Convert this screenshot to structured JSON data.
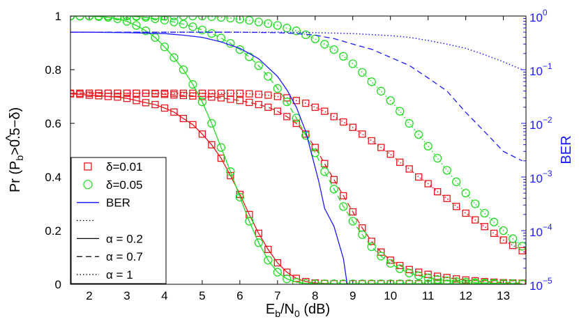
{
  "chart_data": {
    "type": "line",
    "title": "",
    "xlabel": {
      "base": "E",
      "sub1": "b",
      "mid": "/N",
      "sub2": "0",
      "tail": " (dB)"
    },
    "ylabel": {
      "pre": "Pr (",
      "hat": "^",
      "base": "P",
      "sub": "b",
      "post": ">0.5−δ)"
    },
    "y2label": "BER",
    "xlim": [
      1.5,
      13.6
    ],
    "ylim": [
      0,
      1
    ],
    "xticks": [
      2,
      3,
      4,
      5,
      6,
      7,
      8,
      9,
      10,
      11,
      12,
      13
    ],
    "yticks": [
      0,
      0.2,
      0.4,
      0.6,
      0.8,
      1
    ],
    "ytick_labels": [
      "0",
      "0.2",
      "0.4",
      "0.6",
      "0.8",
      "1"
    ],
    "y2lim_log10": [
      -5,
      0
    ],
    "y2ticks": [
      {
        "exp": 0,
        "base": "10",
        "sup": "0"
      },
      {
        "exp": -1,
        "base": "10",
        "sup": "−1"
      },
      {
        "exp": -2,
        "base": "10",
        "sup": "−2"
      },
      {
        "exp": -3,
        "base": "10",
        "sup": "−3"
      },
      {
        "exp": -4,
        "base": "10",
        "sup": "−4"
      },
      {
        "exp": -5,
        "base": "10",
        "sup": "−5"
      }
    ],
    "colors": {
      "red": "#e8141a",
      "green": "#22dd22",
      "blue": "#1a1aff",
      "black": "#000000"
    },
    "marker_x": [
      1.5,
      1.75,
      2,
      2.25,
      2.5,
      2.75,
      3,
      3.25,
      3.5,
      3.75,
      4,
      4.25,
      4.5,
      4.75,
      5,
      5.25,
      5.5,
      5.75,
      6,
      6.25,
      6.5,
      6.75,
      7,
      7.25,
      7.5,
      7.75,
      8,
      8.25,
      8.5,
      8.75,
      9,
      9.25,
      9.5,
      9.75,
      10,
      10.25,
      10.5,
      10.75,
      11,
      11.25,
      11.5,
      11.75,
      12,
      12.25,
      12.5,
      12.75,
      13,
      13.25,
      13.5
    ],
    "series": [
      {
        "name": "delta=0.01, alpha=0.2",
        "color": "red",
        "marker": "square",
        "line": "solid",
        "values": [
          0.71,
          0.708,
          0.705,
          0.703,
          0.7,
          0.698,
          0.693,
          0.685,
          0.677,
          0.67,
          0.657,
          0.642,
          0.618,
          0.595,
          0.56,
          0.52,
          0.47,
          0.405,
          0.335,
          0.26,
          0.19,
          0.13,
          0.08,
          0.045,
          0.022,
          0.01,
          0.005,
          0.003,
          0.002,
          0.002,
          0.002,
          0.002,
          0.002,
          0.002,
          0.002,
          0.002,
          0.002,
          0.002,
          0.002,
          0.002,
          0.002,
          0.002,
          0.002,
          0.002,
          0.002,
          0.002,
          0.002,
          0.002,
          0.002
        ]
      },
      {
        "name": "delta=0.01, alpha=0.7",
        "color": "red",
        "marker": "square",
        "line": "dashed",
        "values": [
          0.712,
          0.712,
          0.712,
          0.712,
          0.712,
          0.712,
          0.712,
          0.712,
          0.712,
          0.71,
          0.708,
          0.706,
          0.704,
          0.702,
          0.7,
          0.698,
          0.695,
          0.69,
          0.685,
          0.678,
          0.67,
          0.66,
          0.645,
          0.625,
          0.6,
          0.56,
          0.51,
          0.45,
          0.39,
          0.33,
          0.27,
          0.21,
          0.16,
          0.12,
          0.09,
          0.07,
          0.055,
          0.045,
          0.037,
          0.03,
          0.025,
          0.02,
          0.016,
          0.013,
          0.01,
          0.008,
          0.006,
          0.005,
          0.004
        ]
      },
      {
        "name": "delta=0.01, alpha=1",
        "color": "red",
        "marker": "square",
        "line": "dotted",
        "values": [
          0.712,
          0.712,
          0.712,
          0.712,
          0.712,
          0.712,
          0.712,
          0.712,
          0.712,
          0.712,
          0.712,
          0.712,
          0.712,
          0.712,
          0.712,
          0.712,
          0.712,
          0.712,
          0.712,
          0.71,
          0.708,
          0.705,
          0.7,
          0.695,
          0.685,
          0.675,
          0.66,
          0.645,
          0.625,
          0.605,
          0.585,
          0.56,
          0.535,
          0.51,
          0.485,
          0.455,
          0.43,
          0.4,
          0.375,
          0.345,
          0.32,
          0.29,
          0.265,
          0.24,
          0.215,
          0.19,
          0.165,
          0.145,
          0.125
        ]
      },
      {
        "name": "delta=0.05, alpha=0.2",
        "color": "green",
        "marker": "circle",
        "line": "solid",
        "values": [
          1,
          1,
          1,
          0.998,
          0.995,
          0.99,
          0.98,
          0.965,
          0.945,
          0.92,
          0.885,
          0.845,
          0.8,
          0.745,
          0.68,
          0.6,
          0.51,
          0.42,
          0.325,
          0.235,
          0.155,
          0.09,
          0.045,
          0.02,
          0.008,
          0.003,
          0.002,
          0.002,
          0.002,
          0.002,
          0.002,
          0.002,
          0.002,
          0.002,
          0.002,
          0.002,
          0.002,
          0.002,
          0.002,
          0.002,
          0.002,
          0.002,
          0.002,
          0.002,
          0.002,
          0.002,
          0.002,
          0.002,
          0.002
        ]
      },
      {
        "name": "delta=0.05, alpha=0.7",
        "color": "green",
        "marker": "circle",
        "line": "dashed",
        "values": [
          1,
          1,
          1,
          1,
          1,
          1,
          1,
          0.998,
          0.995,
          0.99,
          0.985,
          0.978,
          0.97,
          0.96,
          0.948,
          0.935,
          0.918,
          0.898,
          0.875,
          0.848,
          0.815,
          0.775,
          0.73,
          0.68,
          0.62,
          0.555,
          0.49,
          0.42,
          0.355,
          0.29,
          0.235,
          0.185,
          0.14,
          0.105,
          0.078,
          0.058,
          0.042,
          0.032,
          0.024,
          0.018,
          0.013,
          0.01,
          0.008,
          0.006,
          0.005,
          0.004,
          0.003,
          0.003,
          0.002
        ]
      },
      {
        "name": "delta=0.05, alpha=1",
        "color": "green",
        "marker": "circle",
        "line": "dotted",
        "values": [
          1,
          1,
          1,
          1,
          1,
          1,
          1,
          1,
          1,
          1,
          1,
          1,
          1,
          1,
          1,
          0.998,
          0.995,
          0.992,
          0.988,
          0.984,
          0.978,
          0.972,
          0.965,
          0.955,
          0.945,
          0.93,
          0.915,
          0.895,
          0.875,
          0.85,
          0.822,
          0.79,
          0.755,
          0.72,
          0.685,
          0.645,
          0.6,
          0.558,
          0.515,
          0.47,
          0.425,
          0.382,
          0.34,
          0.3,
          0.265,
          0.232,
          0.2,
          0.17,
          0.142
        ]
      },
      {
        "name": "BER, alpha=0.2",
        "color": "blue",
        "marker": "none",
        "line": "solid",
        "axis": "right_log",
        "x": [
          1.5,
          2,
          3,
          4,
          4.5,
          5,
          5.5,
          6,
          6.5,
          7,
          7.25,
          7.5,
          7.75,
          8,
          8.1,
          8.25,
          8.5,
          8.75,
          8.85
        ],
        "values": [
          0.5,
          0.5,
          0.49,
          0.47,
          0.44,
          0.4,
          0.33,
          0.25,
          0.16,
          0.075,
          0.042,
          0.02,
          0.007,
          0.0015,
          0.0008,
          0.00026,
          0.00012,
          3e-05,
          1e-05
        ]
      },
      {
        "name": "BER, alpha=0.7",
        "color": "blue",
        "marker": "none",
        "line": "dashed",
        "axis": "right_log",
        "x": [
          1.5,
          2,
          3,
          4,
          5,
          6,
          7,
          7.5,
          8,
          8.5,
          9,
          9.5,
          10,
          10.5,
          11,
          11.5,
          12,
          12.5,
          13,
          13.5
        ],
        "values": [
          0.5,
          0.5,
          0.5,
          0.5,
          0.5,
          0.5,
          0.49,
          0.47,
          0.44,
          0.38,
          0.3,
          0.24,
          0.17,
          0.12,
          0.07,
          0.04,
          0.016,
          0.007,
          0.003,
          0.002
        ]
      },
      {
        "name": "BER, alpha=1",
        "color": "blue",
        "marker": "none",
        "line": "dotted",
        "axis": "right_log",
        "x": [
          1.5,
          3,
          5,
          7,
          8,
          9,
          10,
          10.5,
          11,
          11.5,
          12,
          12.5,
          13,
          13.5
        ],
        "values": [
          0.5,
          0.5,
          0.5,
          0.5,
          0.49,
          0.47,
          0.43,
          0.4,
          0.35,
          0.3,
          0.25,
          0.19,
          0.14,
          0.1
        ]
      }
    ],
    "legend": {
      "placement": "bottom-left",
      "entries": [
        {
          "label": "δ=0.01",
          "style": "red-square"
        },
        {
          "label": "δ=0.05",
          "style": "green-circle"
        },
        {
          "label": "BER",
          "style": "blue-line"
        },
        {
          "label": "",
          "style": "black-dotted-short"
        },
        {
          "label": "α = 0.2",
          "style": "black-solid"
        },
        {
          "label": "α = 0.7",
          "style": "black-dashed"
        },
        {
          "label": "α = 1",
          "style": "black-dotted"
        }
      ]
    }
  }
}
